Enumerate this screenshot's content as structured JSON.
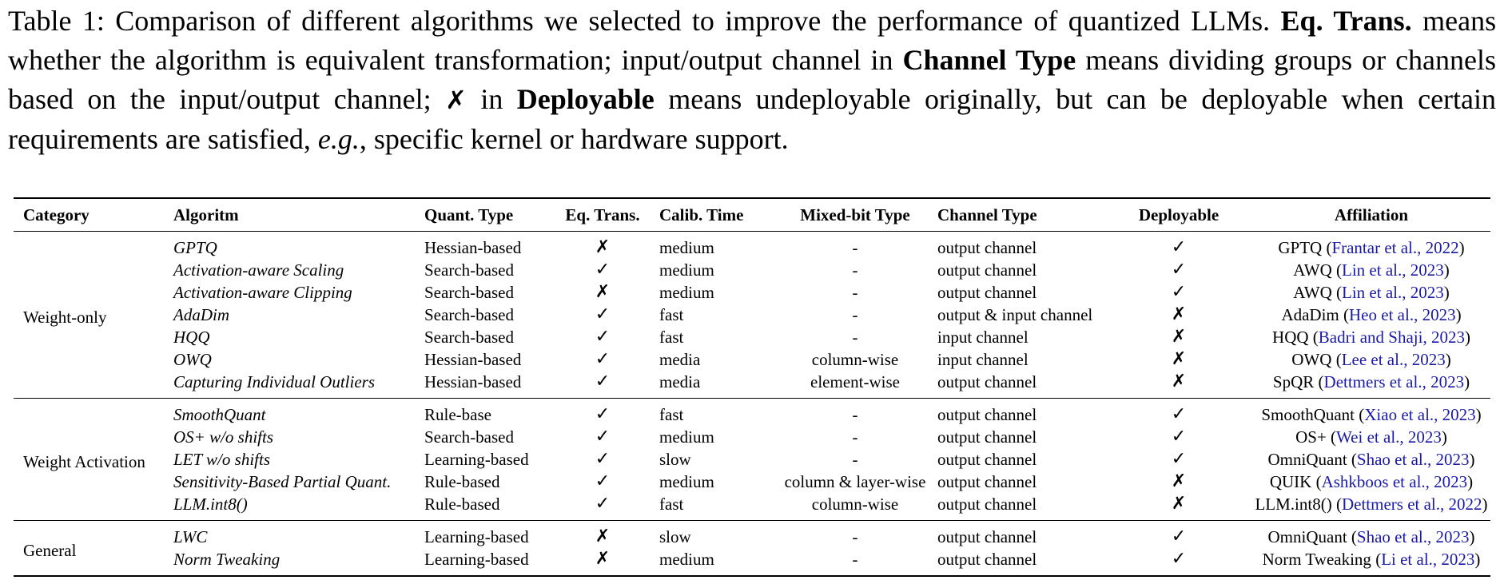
{
  "caption": {
    "label": "Table 1:",
    "text1": "Comparison of different algorithms we selected to improve the performance of quantized LLMs.",
    "bold1": "Eq. Trans.",
    "text2": "means whether the algorithm is equivalent transformation; input/output channel in",
    "bold2": "Channel Type",
    "text3": "means dividing groups or channels based on the input/output channel;",
    "cross": "✗",
    "text4": "in",
    "bold3": "Deployable",
    "text5": "means undeployable originally, but can be deployable when certain requirements are satisfied,",
    "eg": "e.g.",
    "text6": ", specific kernel or hardware support."
  },
  "headers": {
    "category": "Category",
    "algorithm": "Algoritm",
    "quant_type": "Quant. Type",
    "eq_trans": "Eq. Trans.",
    "calib_time": "Calib. Time",
    "mixed_bit": "Mixed-bit Type",
    "channel_type": "Channel Type",
    "deployable": "Deployable",
    "affiliation": "Affiliation"
  },
  "groups": [
    {
      "category": "Weight-only",
      "rows": [
        {
          "algo": "GPTQ",
          "quant": "Hessian-based",
          "eq": "✗",
          "calib": "medium",
          "mixed": "-",
          "channel": "output channel",
          "deploy": "✓",
          "aff": "GPTQ",
          "cite": "Frantar et al., 2022"
        },
        {
          "algo": "Activation-aware Scaling",
          "quant": "Search-based",
          "eq": "✓",
          "calib": "medium",
          "mixed": "-",
          "channel": "output channel",
          "deploy": "✓",
          "aff": "AWQ",
          "cite": "Lin et al., 2023"
        },
        {
          "algo": "Activation-aware Clipping",
          "quant": "Search-based",
          "eq": "✗",
          "calib": "medium",
          "mixed": "-",
          "channel": "output channel",
          "deploy": "✓",
          "aff": "AWQ",
          "cite": "Lin et al., 2023"
        },
        {
          "algo": "AdaDim",
          "quant": "Search-based",
          "eq": "✓",
          "calib": "fast",
          "mixed": "-",
          "channel": "output & input channel",
          "deploy": "✗",
          "aff": "AdaDim",
          "cite": "Heo et al., 2023"
        },
        {
          "algo": "HQQ",
          "quant": "Search-based",
          "eq": "✓",
          "calib": "fast",
          "mixed": "-",
          "channel": "input channel",
          "deploy": "✗",
          "aff": "HQQ",
          "cite": "Badri and Shaji, 2023"
        },
        {
          "algo": "OWQ",
          "quant": "Hessian-based",
          "eq": "✓",
          "calib": "media",
          "mixed": "column-wise",
          "channel": "input channel",
          "deploy": "✗",
          "aff": "OWQ",
          "cite": "Lee et al., 2023"
        },
        {
          "algo": "Capturing Individual Outliers",
          "quant": "Hessian-based",
          "eq": "✓",
          "calib": "media",
          "mixed": "element-wise",
          "channel": "output channel",
          "deploy": "✗",
          "aff": "SpQR",
          "cite": "Dettmers et al., 2023"
        }
      ]
    },
    {
      "category": "Weight Activation",
      "rows": [
        {
          "algo": "SmoothQuant",
          "quant": "Rule-base",
          "eq": "✓",
          "calib": "fast",
          "mixed": "-",
          "channel": "output channel",
          "deploy": "✓",
          "aff": "SmoothQuant",
          "cite": "Xiao et al., 2023"
        },
        {
          "algo": "OS+ w/o shifts",
          "quant": "Search-based",
          "eq": "✓",
          "calib": "medium",
          "mixed": "-",
          "channel": "output channel",
          "deploy": "✓",
          "aff": "OS+",
          "cite": "Wei et al., 2023"
        },
        {
          "algo": "LET w/o shifts",
          "quant": "Learning-based",
          "eq": "✓",
          "calib": "slow",
          "mixed": "-",
          "channel": "output channel",
          "deploy": "✓",
          "aff": "OmniQuant",
          "cite": "Shao et al., 2023"
        },
        {
          "algo": "Sensitivity-Based Partial Quant.",
          "quant": "Rule-based",
          "eq": "✓",
          "calib": "medium",
          "mixed": "column & layer-wise",
          "channel": "output channel",
          "deploy": "✗",
          "aff": "QUIK",
          "cite": "Ashkboos et al., 2023"
        },
        {
          "algo": "LLM.int8()",
          "quant": "Rule-based",
          "eq": "✓",
          "calib": "fast",
          "mixed": "column-wise",
          "channel": "output channel",
          "deploy": "✗",
          "aff": "LLM.int8()",
          "cite": "Dettmers et al., 2022"
        }
      ]
    },
    {
      "category": "General",
      "rows": [
        {
          "algo": "LWC",
          "quant": "Learning-based",
          "eq": "✗",
          "calib": "slow",
          "mixed": "-",
          "channel": "output channel",
          "deploy": "✓",
          "aff": "OmniQuant",
          "cite": "Shao et al., 2023"
        },
        {
          "algo": "Norm Tweaking",
          "quant": "Learning-based",
          "eq": "✗",
          "calib": "medium",
          "mixed": "-",
          "channel": "output channel",
          "deploy": "✓",
          "aff": "Norm Tweaking",
          "cite": "Li et al., 2023"
        }
      ]
    }
  ]
}
